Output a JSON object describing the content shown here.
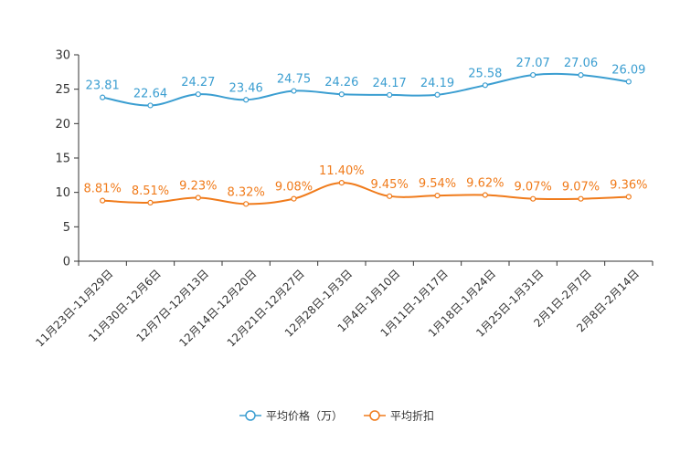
{
  "chart_data": {
    "type": "line",
    "title": "",
    "xlabel": "",
    "ylabel": "",
    "ylim": [
      0,
      30
    ],
    "yticks": [
      0,
      5,
      10,
      15,
      20,
      25,
      30
    ],
    "legend_position": "bottom-center",
    "categories": [
      "11月23日-11月29日",
      "11月30日-12月6日",
      "12月7日-12月13日",
      "12月14日-12月20日",
      "12月21日-12月27日",
      "12月28日-1月3日",
      "1月4日-1月10日",
      "1月11日-1月17日",
      "1月18日-1月24日",
      "1月25日-1月31日",
      "2月1日-2月7日",
      "2月8日-2月14日"
    ],
    "series": [
      {
        "name": "平均价格（万）",
        "color": "#3b9ed1",
        "values": [
          23.81,
          22.64,
          24.27,
          23.46,
          24.75,
          24.26,
          24.17,
          24.19,
          25.58,
          27.07,
          27.06,
          26.09
        ],
        "labels": [
          "23.81",
          "22.64",
          "24.27",
          "23.46",
          "24.75",
          "24.26",
          "24.17",
          "24.19",
          "25.58",
          "27.07",
          "27.06",
          "26.09"
        ]
      },
      {
        "name": "平均折扣",
        "color": "#f07b1b",
        "values": [
          8.81,
          8.51,
          9.23,
          8.32,
          9.08,
          11.4,
          9.45,
          9.54,
          9.62,
          9.07,
          9.07,
          9.36
        ],
        "labels": [
          "8.81%",
          "8.51%",
          "9.23%",
          "8.32%",
          "9.08%",
          "11.40%",
          "9.45%",
          "9.54%",
          "9.62%",
          "9.07%",
          "9.07%",
          "9.36%"
        ]
      }
    ]
  }
}
